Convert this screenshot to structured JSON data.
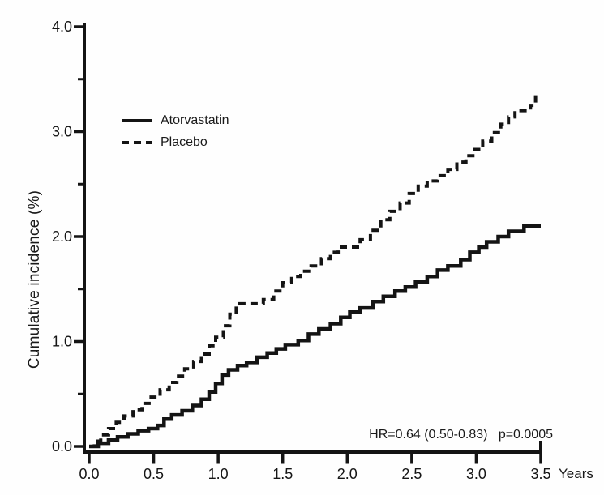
{
  "figure": {
    "background": "#fefefe",
    "ink_color": "#141414"
  },
  "chart_data": {
    "type": "line",
    "subtype": "step-cumulative-incidence",
    "title": "",
    "xlabel": "Years",
    "ylabel": "Cumulative incidence (%)",
    "xlim": [
      0.0,
      3.5
    ],
    "ylim": [
      0.0,
      4.0
    ],
    "grid": false,
    "legend_position": "upper-left-inside",
    "x_ticks": [
      0.0,
      0.5,
      1.0,
      1.5,
      2.0,
      2.5,
      3.0,
      3.5
    ],
    "x_tick_labels": [
      "0.0",
      "0.5",
      "1.0",
      "1.5",
      "2.0",
      "2.5",
      "3.0",
      "3.5"
    ],
    "y_ticks_major": [
      0.0,
      1.0,
      2.0,
      3.0,
      4.0
    ],
    "y_tick_labels": [
      "0.0",
      "1.0",
      "2.0",
      "3.0",
      "4.0"
    ],
    "y_ticks_minor": [
      0.5,
      1.5,
      2.5,
      3.5
    ],
    "annotation": "HR=0.64 (0.50-0.83)   p=0.0005",
    "series": [
      {
        "name": "Atorvastatin",
        "style": "solid",
        "color": "#141414",
        "points": [
          [
            0.0,
            0.0
          ],
          [
            0.07,
            0.03
          ],
          [
            0.15,
            0.06
          ],
          [
            0.22,
            0.09
          ],
          [
            0.3,
            0.12
          ],
          [
            0.38,
            0.15
          ],
          [
            0.46,
            0.17
          ],
          [
            0.53,
            0.2
          ],
          [
            0.58,
            0.26
          ],
          [
            0.64,
            0.3
          ],
          [
            0.72,
            0.34
          ],
          [
            0.8,
            0.39
          ],
          [
            0.87,
            0.45
          ],
          [
            0.93,
            0.52
          ],
          [
            0.98,
            0.6
          ],
          [
            1.03,
            0.68
          ],
          [
            1.08,
            0.73
          ],
          [
            1.15,
            0.77
          ],
          [
            1.22,
            0.8
          ],
          [
            1.3,
            0.85
          ],
          [
            1.38,
            0.89
          ],
          [
            1.45,
            0.93
          ],
          [
            1.52,
            0.97
          ],
          [
            1.62,
            1.01
          ],
          [
            1.7,
            1.07
          ],
          [
            1.78,
            1.12
          ],
          [
            1.87,
            1.17
          ],
          [
            1.95,
            1.23
          ],
          [
            2.02,
            1.28
          ],
          [
            2.1,
            1.32
          ],
          [
            2.2,
            1.38
          ],
          [
            2.28,
            1.43
          ],
          [
            2.37,
            1.48
          ],
          [
            2.45,
            1.52
          ],
          [
            2.53,
            1.57
          ],
          [
            2.62,
            1.62
          ],
          [
            2.7,
            1.68
          ],
          [
            2.78,
            1.72
          ],
          [
            2.88,
            1.78
          ],
          [
            2.95,
            1.85
          ],
          [
            3.02,
            1.9
          ],
          [
            3.08,
            1.95
          ],
          [
            3.17,
            2.0
          ],
          [
            3.25,
            2.05
          ],
          [
            3.37,
            2.1
          ],
          [
            3.5,
            2.1
          ]
        ]
      },
      {
        "name": "Placebo",
        "style": "dashed",
        "color": "#141414",
        "points": [
          [
            0.0,
            0.0
          ],
          [
            0.04,
            0.05
          ],
          [
            0.09,
            0.11
          ],
          [
            0.15,
            0.17
          ],
          [
            0.21,
            0.23
          ],
          [
            0.27,
            0.29
          ],
          [
            0.34,
            0.35
          ],
          [
            0.41,
            0.41
          ],
          [
            0.48,
            0.47
          ],
          [
            0.55,
            0.54
          ],
          [
            0.62,
            0.61
          ],
          [
            0.68,
            0.67
          ],
          [
            0.74,
            0.74
          ],
          [
            0.81,
            0.81
          ],
          [
            0.87,
            0.88
          ],
          [
            0.93,
            0.96
          ],
          [
            0.98,
            1.04
          ],
          [
            1.04,
            1.15
          ],
          [
            1.09,
            1.26
          ],
          [
            1.14,
            1.36
          ],
          [
            1.35,
            1.4
          ],
          [
            1.43,
            1.48
          ],
          [
            1.5,
            1.56
          ],
          [
            1.57,
            1.62
          ],
          [
            1.64,
            1.67
          ],
          [
            1.72,
            1.72
          ],
          [
            1.8,
            1.79
          ],
          [
            1.87,
            1.85
          ],
          [
            1.93,
            1.9
          ],
          [
            2.1,
            1.97
          ],
          [
            2.18,
            2.06
          ],
          [
            2.26,
            2.16
          ],
          [
            2.33,
            2.24
          ],
          [
            2.41,
            2.32
          ],
          [
            2.48,
            2.41
          ],
          [
            2.55,
            2.48
          ],
          [
            2.62,
            2.53
          ],
          [
            2.7,
            2.58
          ],
          [
            2.78,
            2.64
          ],
          [
            2.85,
            2.71
          ],
          [
            2.92,
            2.77
          ],
          [
            2.99,
            2.83
          ],
          [
            3.05,
            2.91
          ],
          [
            3.12,
            2.99
          ],
          [
            3.19,
            3.07
          ],
          [
            3.25,
            3.14
          ],
          [
            3.3,
            3.2
          ],
          [
            3.42,
            3.25
          ],
          [
            3.46,
            3.36
          ],
          [
            3.48,
            3.36
          ]
        ]
      }
    ]
  }
}
